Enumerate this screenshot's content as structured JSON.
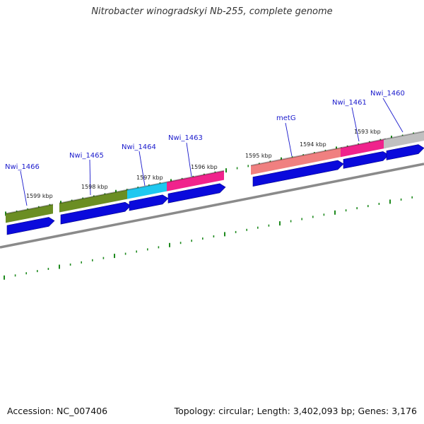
{
  "title": "Nitrobacter winogradskyi Nb-255, complete genome",
  "footer": {
    "accession": "Accession: NC_007406",
    "topology": "Topology: circular; Length: 3,402,093 bp; Genes: 3,176"
  },
  "colors": {
    "backbone": "#8a8a8a",
    "tick": "#1e8a1e",
    "cds": "#0a0adc",
    "label": "#1a1acc",
    "olive": "#6b8e23",
    "cyan": "#1ec8f0",
    "magenta": "#f0238c",
    "salmon": "#f08080",
    "gray": "#c0c0c0"
  },
  "kbp_labels": [
    "1599 kbp",
    "1598 kbp",
    "1597 kbp",
    "1596 kbp",
    "1595 kbp",
    "1594 kbp",
    "1593 kbp"
  ],
  "genes": [
    {
      "label": "Nwi_1466",
      "color": "olive"
    },
    {
      "label": "Nwi_1465",
      "color": "olive"
    },
    {
      "label": "Nwi_1464",
      "color": "cyan"
    },
    {
      "label": "Nwi_1463",
      "color": "magenta"
    },
    {
      "label": "metG",
      "color": "salmon"
    },
    {
      "label": "Nwi_1461",
      "color": "magenta"
    },
    {
      "label": "Nwi_1460",
      "color": "gray"
    }
  ]
}
